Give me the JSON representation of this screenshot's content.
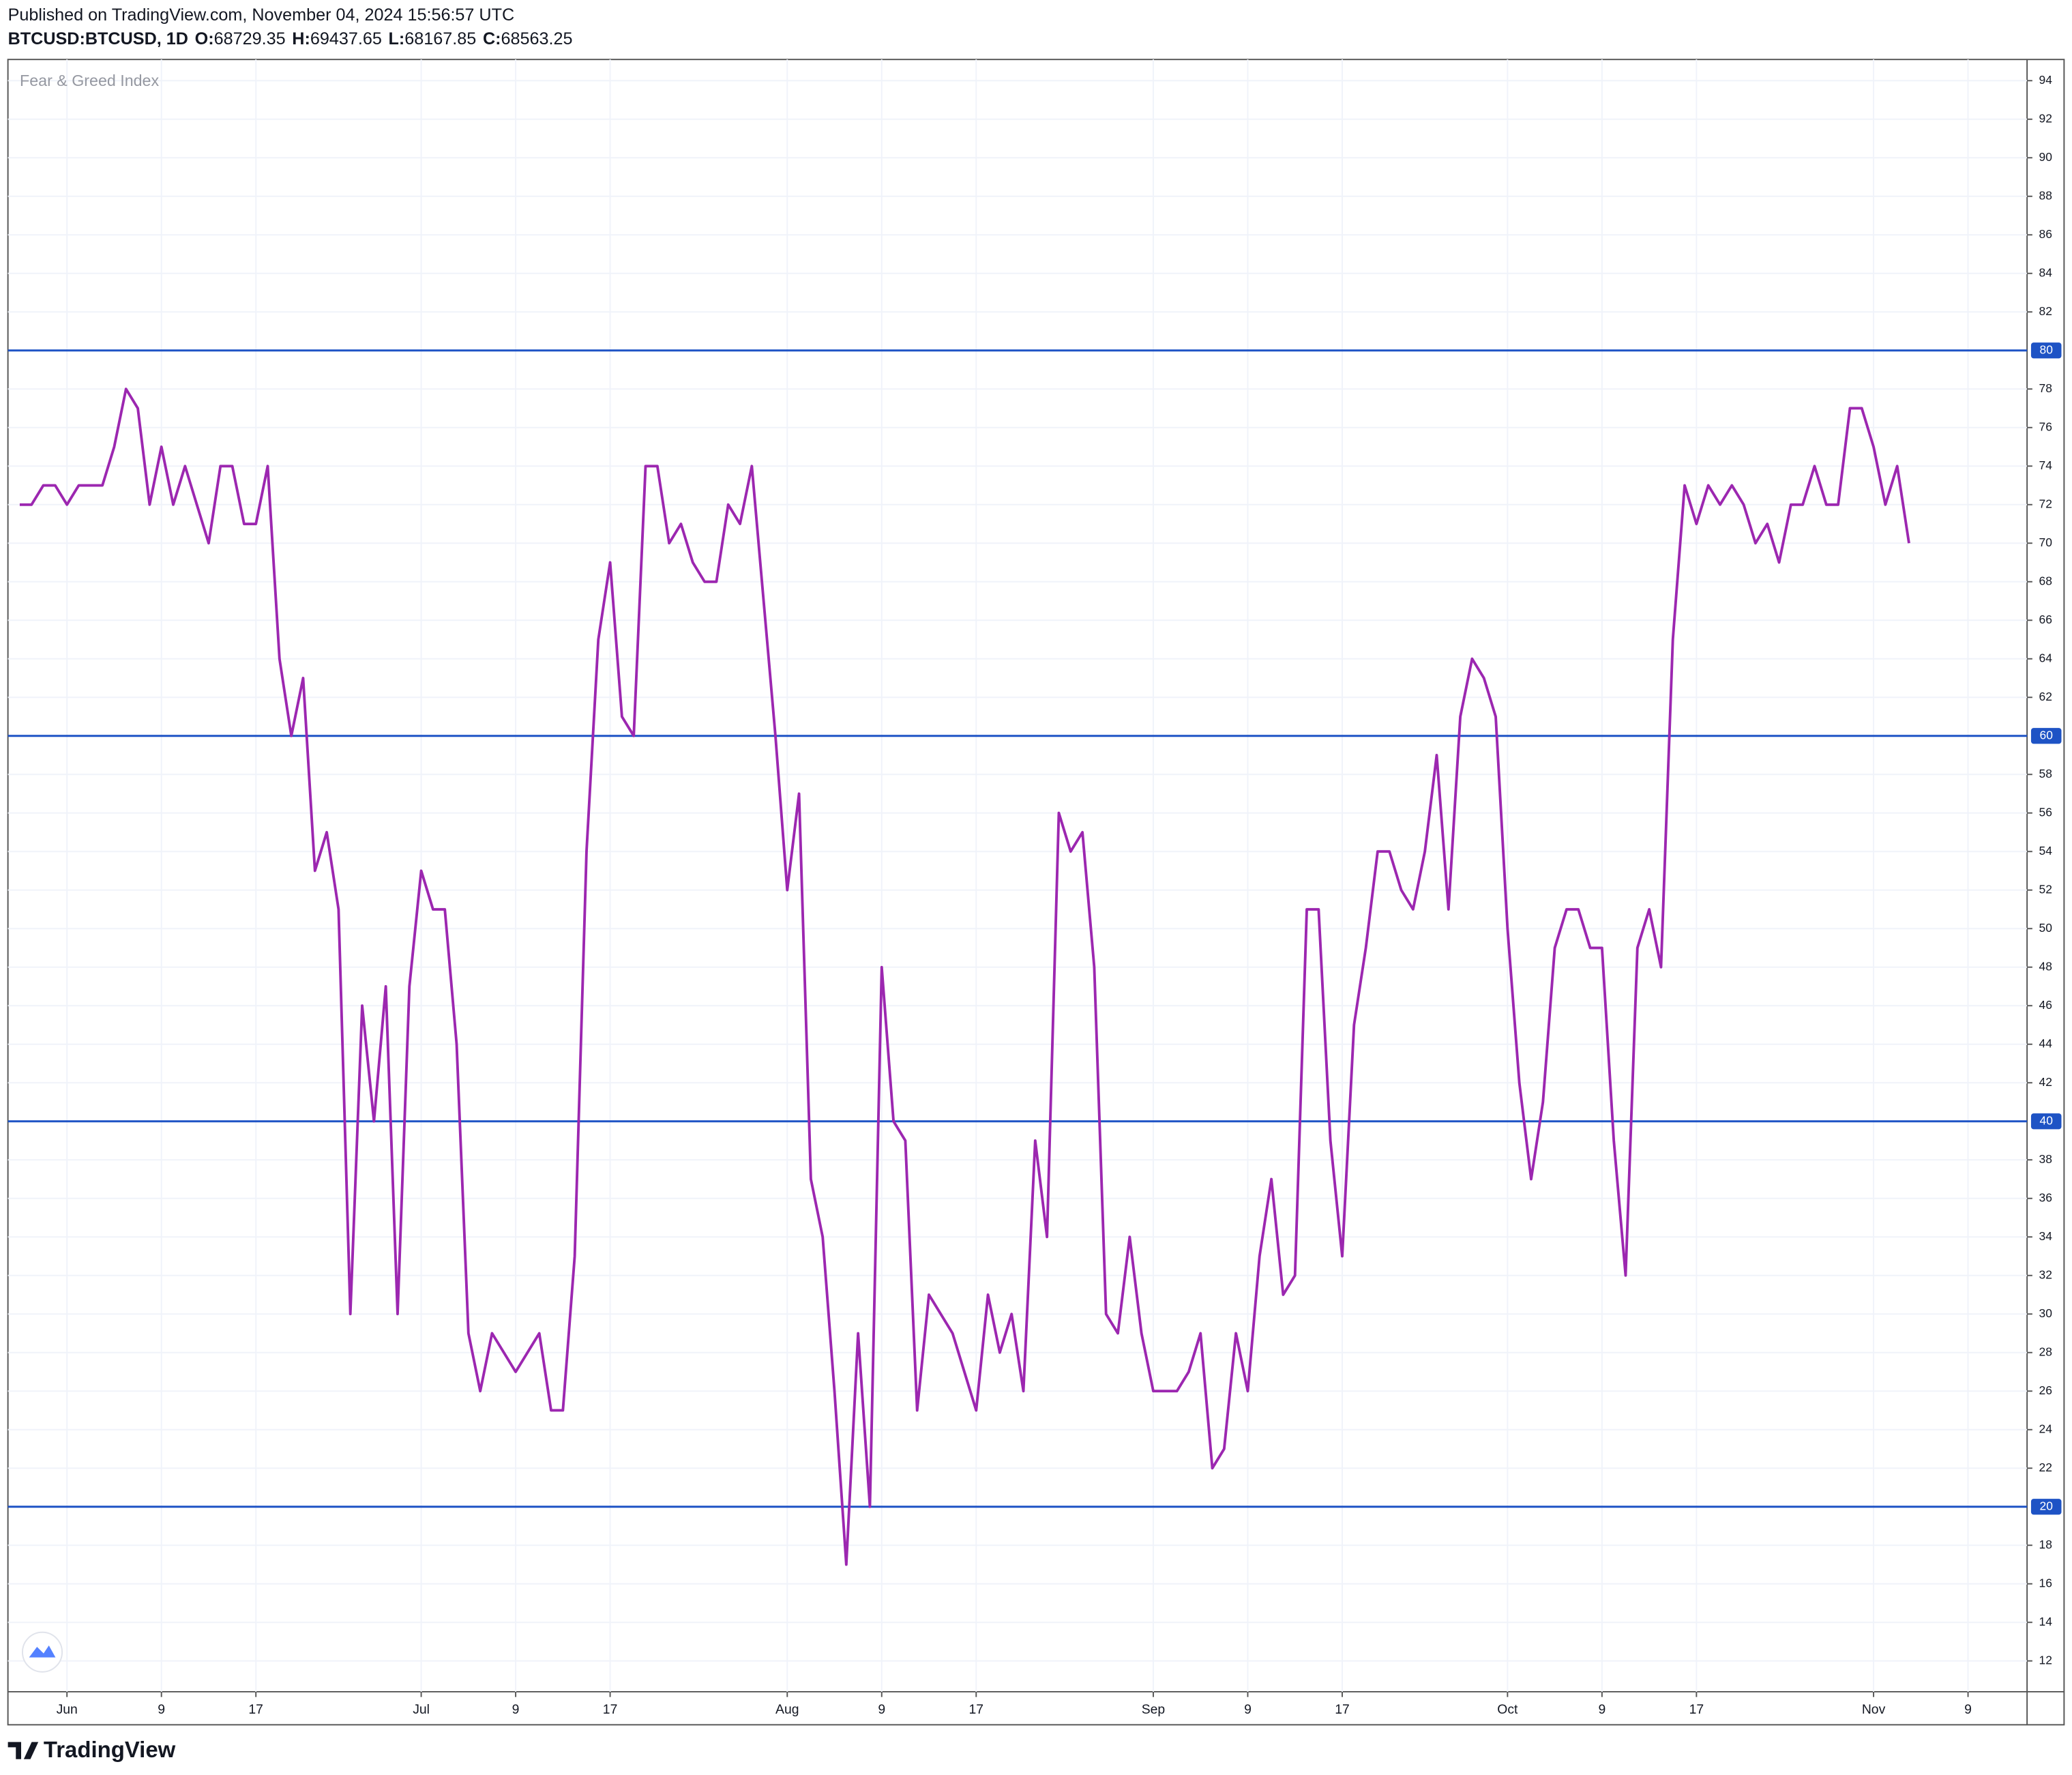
{
  "header": {
    "published": "Published on TradingView.com, November 04, 2024 15:56:57 UTC",
    "symbol": "BTCUSD:BTCUSD, 1D",
    "ohlc": [
      {
        "label": "O:",
        "value": "68729.35"
      },
      {
        "label": "H:",
        "value": "69437.65"
      },
      {
        "label": "L:",
        "value": "68167.85"
      },
      {
        "label": "C:",
        "value": "68563.25"
      }
    ]
  },
  "footer": {
    "brand": "TradingView"
  },
  "chart_data": {
    "type": "line",
    "x": [
      "05-28",
      "05-29",
      "05-30",
      "05-31",
      "06-01",
      "06-02",
      "06-03",
      "06-04",
      "06-05",
      "06-06",
      "06-07",
      "06-08",
      "06-09",
      "06-10",
      "06-11",
      "06-12",
      "06-13",
      "06-14",
      "06-15",
      "06-16",
      "06-17",
      "06-18",
      "06-19",
      "06-20",
      "06-21",
      "06-22",
      "06-23",
      "06-24",
      "06-25",
      "06-26",
      "06-27",
      "06-28",
      "06-29",
      "06-30",
      "07-01",
      "07-02",
      "07-03",
      "07-04",
      "07-05",
      "07-06",
      "07-07",
      "07-08",
      "07-09",
      "07-10",
      "07-11",
      "07-12",
      "07-13",
      "07-14",
      "07-15",
      "07-16",
      "07-17",
      "07-18",
      "07-19",
      "07-20",
      "07-21",
      "07-22",
      "07-23",
      "07-24",
      "07-25",
      "07-26",
      "07-27",
      "07-28",
      "07-29",
      "07-30",
      "07-31",
      "08-01",
      "08-02",
      "08-03",
      "08-04",
      "08-05",
      "08-06",
      "08-07",
      "08-08",
      "08-09",
      "08-10",
      "08-11",
      "08-12",
      "08-13",
      "08-14",
      "08-15",
      "08-16",
      "08-17",
      "08-18",
      "08-19",
      "08-20",
      "08-21",
      "08-22",
      "08-23",
      "08-24",
      "08-25",
      "08-26",
      "08-27",
      "08-28",
      "08-29",
      "08-30",
      "08-31",
      "09-01",
      "09-02",
      "09-03",
      "09-04",
      "09-05",
      "09-06",
      "09-07",
      "09-08",
      "09-09",
      "09-10",
      "09-11",
      "09-12",
      "09-13",
      "09-14",
      "09-15",
      "09-16",
      "09-17",
      "09-18",
      "09-19",
      "09-20",
      "09-21",
      "09-22",
      "09-23",
      "09-24",
      "09-25",
      "09-26",
      "09-27",
      "09-28",
      "09-29",
      "09-30",
      "10-01",
      "10-02",
      "10-03",
      "10-04",
      "10-05",
      "10-06",
      "10-07",
      "10-08",
      "10-09",
      "10-10",
      "10-11",
      "10-12",
      "10-13",
      "10-14",
      "10-15",
      "10-16",
      "10-17",
      "10-18",
      "10-19",
      "10-20",
      "10-21",
      "10-22",
      "10-23",
      "10-24",
      "10-25",
      "10-26",
      "10-27",
      "10-28",
      "10-29",
      "10-30",
      "10-31",
      "11-01",
      "11-02",
      "11-03",
      "11-04"
    ],
    "series": [
      {
        "name": "Fear & Greed Index",
        "color": "#9c27b0",
        "values": [
          72,
          72,
          73,
          73,
          72,
          73,
          73,
          73,
          75,
          78,
          77,
          72,
          75,
          72,
          74,
          72,
          70,
          74,
          74,
          71,
          71,
          74,
          64,
          60,
          63,
          53,
          55,
          51,
          30,
          46,
          40,
          47,
          30,
          47,
          53,
          51,
          51,
          44,
          29,
          26,
          29,
          28,
          27,
          28,
          29,
          25,
          25,
          33,
          54,
          65,
          69,
          61,
          60,
          74,
          74,
          70,
          71,
          69,
          68,
          68,
          72,
          71,
          74,
          67,
          60,
          52,
          57,
          37,
          34,
          26,
          17,
          29,
          20,
          48,
          40,
          39,
          25,
          31,
          30,
          29,
          27,
          25,
          31,
          28,
          30,
          26,
          39,
          34,
          56,
          54,
          55,
          48,
          30,
          29,
          34,
          29,
          26,
          26,
          26,
          27,
          29,
          22,
          23,
          29,
          26,
          33,
          37,
          31,
          32,
          51,
          51,
          39,
          33,
          45,
          49,
          54,
          54,
          52,
          51,
          54,
          59,
          51,
          61,
          64,
          63,
          61,
          50,
          42,
          37,
          41,
          49,
          51,
          51,
          49,
          49,
          39,
          32,
          49,
          51,
          48,
          65,
          73,
          71,
          73,
          72,
          73,
          72,
          70,
          71,
          69,
          72,
          72,
          74,
          72,
          72,
          77,
          77,
          75,
          72,
          74,
          70
        ]
      }
    ],
    "xlim": [
      "05-27",
      "11-14"
    ],
    "xticks": [
      {
        "value": "06-01",
        "label": "Jun"
      },
      {
        "value": "06-09",
        "label": "9"
      },
      {
        "value": "06-17",
        "label": "17"
      },
      {
        "value": "07-01",
        "label": "Jul"
      },
      {
        "value": "07-09",
        "label": "9"
      },
      {
        "value": "07-17",
        "label": "17"
      },
      {
        "value": "08-01",
        "label": "Aug"
      },
      {
        "value": "08-09",
        "label": "9"
      },
      {
        "value": "08-17",
        "label": "17"
      },
      {
        "value": "09-01",
        "label": "Sep"
      },
      {
        "value": "09-09",
        "label": "9"
      },
      {
        "value": "09-17",
        "label": "17"
      },
      {
        "value": "10-01",
        "label": "Oct"
      },
      {
        "value": "10-09",
        "label": "9"
      },
      {
        "value": "10-17",
        "label": "17"
      },
      {
        "value": "11-01",
        "label": "Nov"
      },
      {
        "value": "11-09",
        "label": "9"
      }
    ],
    "ylim": [
      10.4,
      95.1
    ],
    "yticks": [
      12,
      14,
      16,
      18,
      22,
      24,
      26,
      28,
      30,
      32,
      34,
      36,
      38,
      42,
      44,
      46,
      48,
      50,
      52,
      54,
      56,
      58,
      62,
      64,
      66,
      68,
      70,
      72,
      74,
      76,
      78,
      82,
      84,
      86,
      88,
      90,
      92,
      94
    ],
    "hlines": [
      80,
      60,
      40,
      20
    ],
    "hline_color": "#1e53c5",
    "grid": true
  }
}
